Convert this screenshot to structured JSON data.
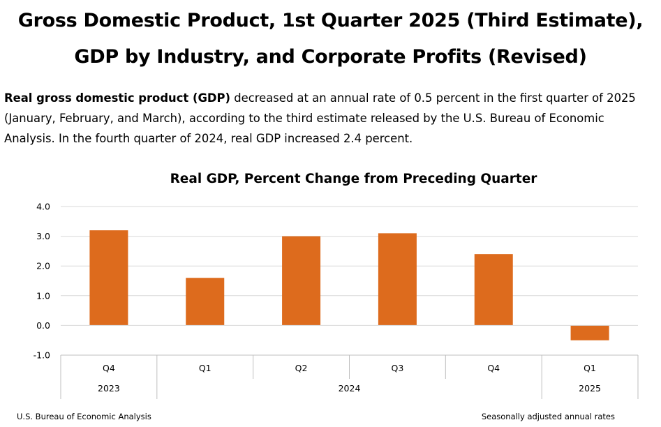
{
  "page": {
    "headline_line1": "Gross Domestic Product, 1st Quarter 2025 (Third Estimate),",
    "headline_line2": "GDP by Industry, and Corporate Profits (Revised)",
    "summary_bold": "Real gross domestic product (GDP)",
    "summary_rest": " decreased at an annual rate of 0.5 percent in the first quarter of 2025 (January, February, and March), according to the third estimate released by the U.S. Bureau of Economic Analysis. In the fourth quarter of 2024, real GDP increased 2.4 percent.",
    "footer_left": "U.S. Bureau of Economic Analysis",
    "footer_right": "Seasonally adjusted annual rates"
  },
  "chart_data": {
    "type": "bar",
    "title": "Real GDP, Percent Change from Preceding Quarter",
    "categories": [
      "Q4",
      "Q1",
      "Q2",
      "Q3",
      "Q4",
      "Q1"
    ],
    "year_groups": [
      {
        "label": "2023",
        "count": 1
      },
      {
        "label": "2024",
        "count": 4
      },
      {
        "label": "2025",
        "count": 1
      }
    ],
    "values": [
      3.2,
      1.6,
      3.0,
      3.1,
      2.4,
      -0.5
    ],
    "ylim": [
      -1.0,
      4.0
    ],
    "yticks": [
      4.0,
      3.0,
      2.0,
      1.0,
      0.0,
      -1.0
    ],
    "ytick_labels": [
      "4.0",
      "3.0",
      "2.0",
      "1.0",
      "0.0",
      "-1.0"
    ],
    "xlabel": "",
    "ylabel": "",
    "grid": true,
    "colors": {
      "bar": "#dd6b1d",
      "grid": "#d9d9d9",
      "axis": "#bfbfbf"
    }
  }
}
